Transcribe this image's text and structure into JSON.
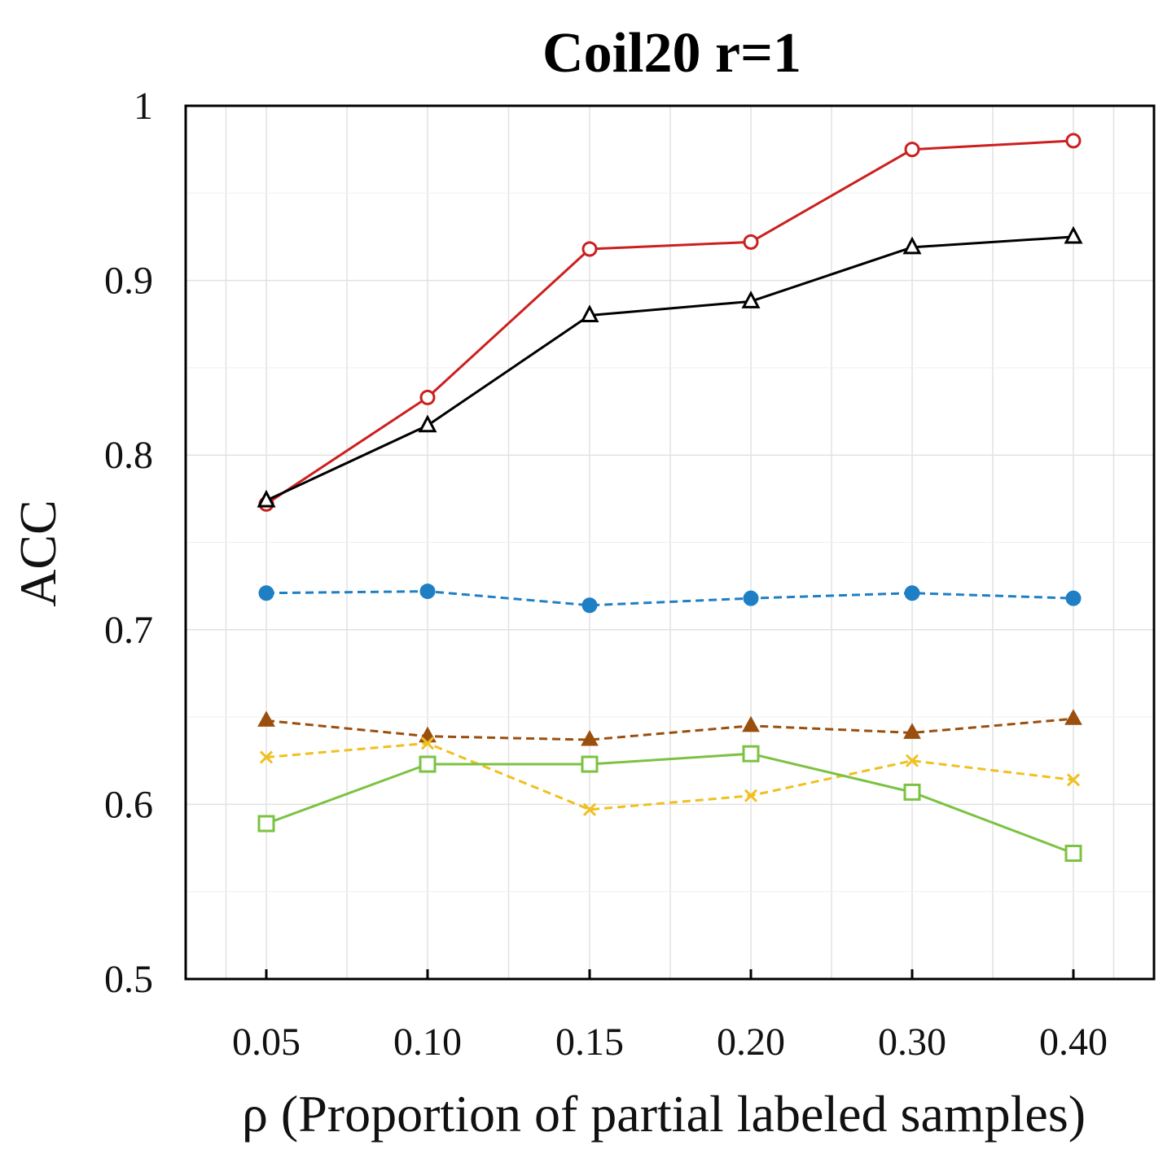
{
  "chart_data": {
    "type": "line",
    "title": "Coil20 r=1",
    "xlabel": "ρ (Proportion of partial labeled samples)",
    "ylabel": "ACC",
    "categories": [
      "0.05",
      "0.10",
      "0.15",
      "0.20",
      "0.30",
      "0.40"
    ],
    "ylim": [
      0.5,
      1.0
    ],
    "yticks": [
      "0.5",
      "0.6",
      "0.7",
      "0.8",
      "0.9",
      "1"
    ],
    "grid": true,
    "legend": "none",
    "series": [
      {
        "values": [
          0.772,
          0.833,
          0.918,
          0.922,
          0.975,
          0.98
        ],
        "color": "#cc1f1f",
        "marker": "circle-open",
        "dash": false
      },
      {
        "values": [
          0.774,
          0.817,
          0.88,
          0.888,
          0.919,
          0.925
        ],
        "color": "#000000",
        "marker": "triangle-open",
        "dash": false
      },
      {
        "values": [
          0.721,
          0.722,
          0.714,
          0.718,
          0.721,
          0.718
        ],
        "color": "#1f7fc4",
        "marker": "circle-filled",
        "dash": true
      },
      {
        "values": [
          0.648,
          0.639,
          0.637,
          0.645,
          0.641,
          0.649
        ],
        "color": "#9a4f0f",
        "marker": "triangle-filled",
        "dash": true
      },
      {
        "values": [
          0.627,
          0.635,
          0.597,
          0.605,
          0.625,
          0.614
        ],
        "color": "#f0c020",
        "marker": "x",
        "dash": true
      },
      {
        "values": [
          0.589,
          0.623,
          0.623,
          0.629,
          0.607,
          0.572
        ],
        "color": "#7cc242",
        "marker": "square-open",
        "dash": false
      }
    ]
  }
}
